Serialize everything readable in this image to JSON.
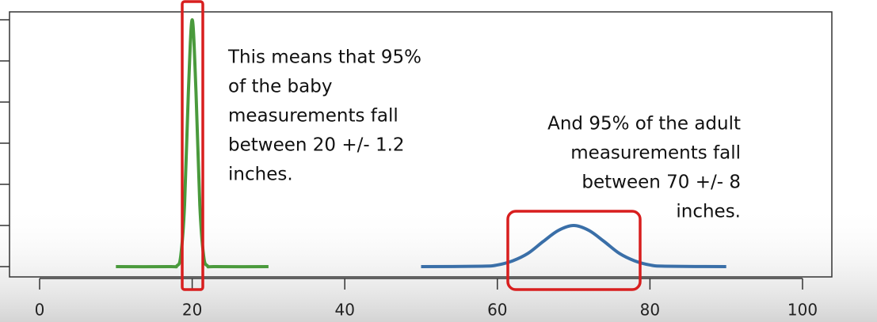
{
  "chart_data": {
    "type": "line",
    "annotations": [
      [
        "This means that 95%",
        "of the baby",
        "measurements fall",
        "between 20 +/- 1.2",
        "inches."
      ],
      [
        "And 95% of the adult",
        "measurements fall",
        "between 70 +/- 8",
        "inches."
      ]
    ],
    "series": [
      {
        "color": "#4a9a3c",
        "x": [
          10,
          17,
          18,
          18.5,
          19,
          19.5,
          20,
          20.5,
          21,
          21.5,
          22,
          23,
          30
        ],
        "values": [
          0,
          0,
          0.002,
          0.026,
          0.15,
          0.424,
          0.6,
          0.424,
          0.15,
          0.026,
          0.002,
          0,
          0
        ]
      },
      {
        "color": "#3a6fa8",
        "x": [
          50,
          58,
          60,
          62,
          64,
          66,
          68,
          70,
          72,
          74,
          76,
          78,
          80,
          82,
          90
        ],
        "values": [
          0,
          0.001,
          0.004,
          0.014,
          0.032,
          0.061,
          0.088,
          0.1,
          0.088,
          0.061,
          0.032,
          0.014,
          0.004,
          0.001,
          0
        ]
      }
    ],
    "xlim": [
      0,
      100
    ],
    "xticks": [
      0,
      20,
      40,
      60,
      80,
      100
    ],
    "ylim": [
      -0.025,
      0.625
    ],
    "yticks": [
      0,
      0.1,
      0.2,
      0.3,
      0.4,
      0.5,
      0.6
    ]
  }
}
